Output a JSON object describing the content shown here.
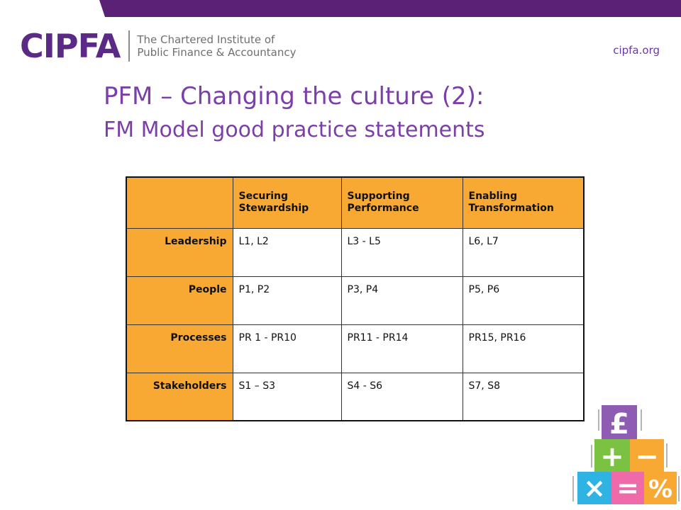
{
  "header": {
    "logo_mark": "CIPFA",
    "logo_line1": "The Chartered Institute of",
    "logo_line2": "Public Finance & Accountancy",
    "url": "cipfa.org"
  },
  "title": {
    "line1": "PFM – Changing the culture (2):",
    "line2": "FM Model good practice statements"
  },
  "table": {
    "columns": [
      "",
      "Securing Stewardship",
      "Supporting Performance",
      "Enabling Transformation"
    ],
    "rows": [
      {
        "label": "Leadership",
        "cells": [
          "L1, L2",
          "L3 - L5",
          "L6, L7"
        ]
      },
      {
        "label": "People",
        "cells": [
          "P1, P2",
          "P3, P4",
          "P5, P6"
        ]
      },
      {
        "label": "Processes",
        "cells": [
          "PR 1 - PR10",
          "PR11 - PR14",
          "PR15, PR16"
        ]
      },
      {
        "label": "Stakeholders",
        "cells": [
          "S1 – S3",
          "S4 - S6",
          "S7, S8"
        ]
      }
    ]
  },
  "decoration": {
    "symbols": [
      "£",
      "+",
      "−",
      "×",
      "=",
      "%"
    ],
    "colors": {
      "purple": "#8e5db3",
      "green": "#7bc242",
      "orange": "#f7a934",
      "blue": "#2fb3e3",
      "pink": "#ef6aa9"
    }
  },
  "colors": {
    "brand_purple": "#5b2a86",
    "title_purple": "#7a3fa8",
    "header_orange": "#f7a934"
  }
}
